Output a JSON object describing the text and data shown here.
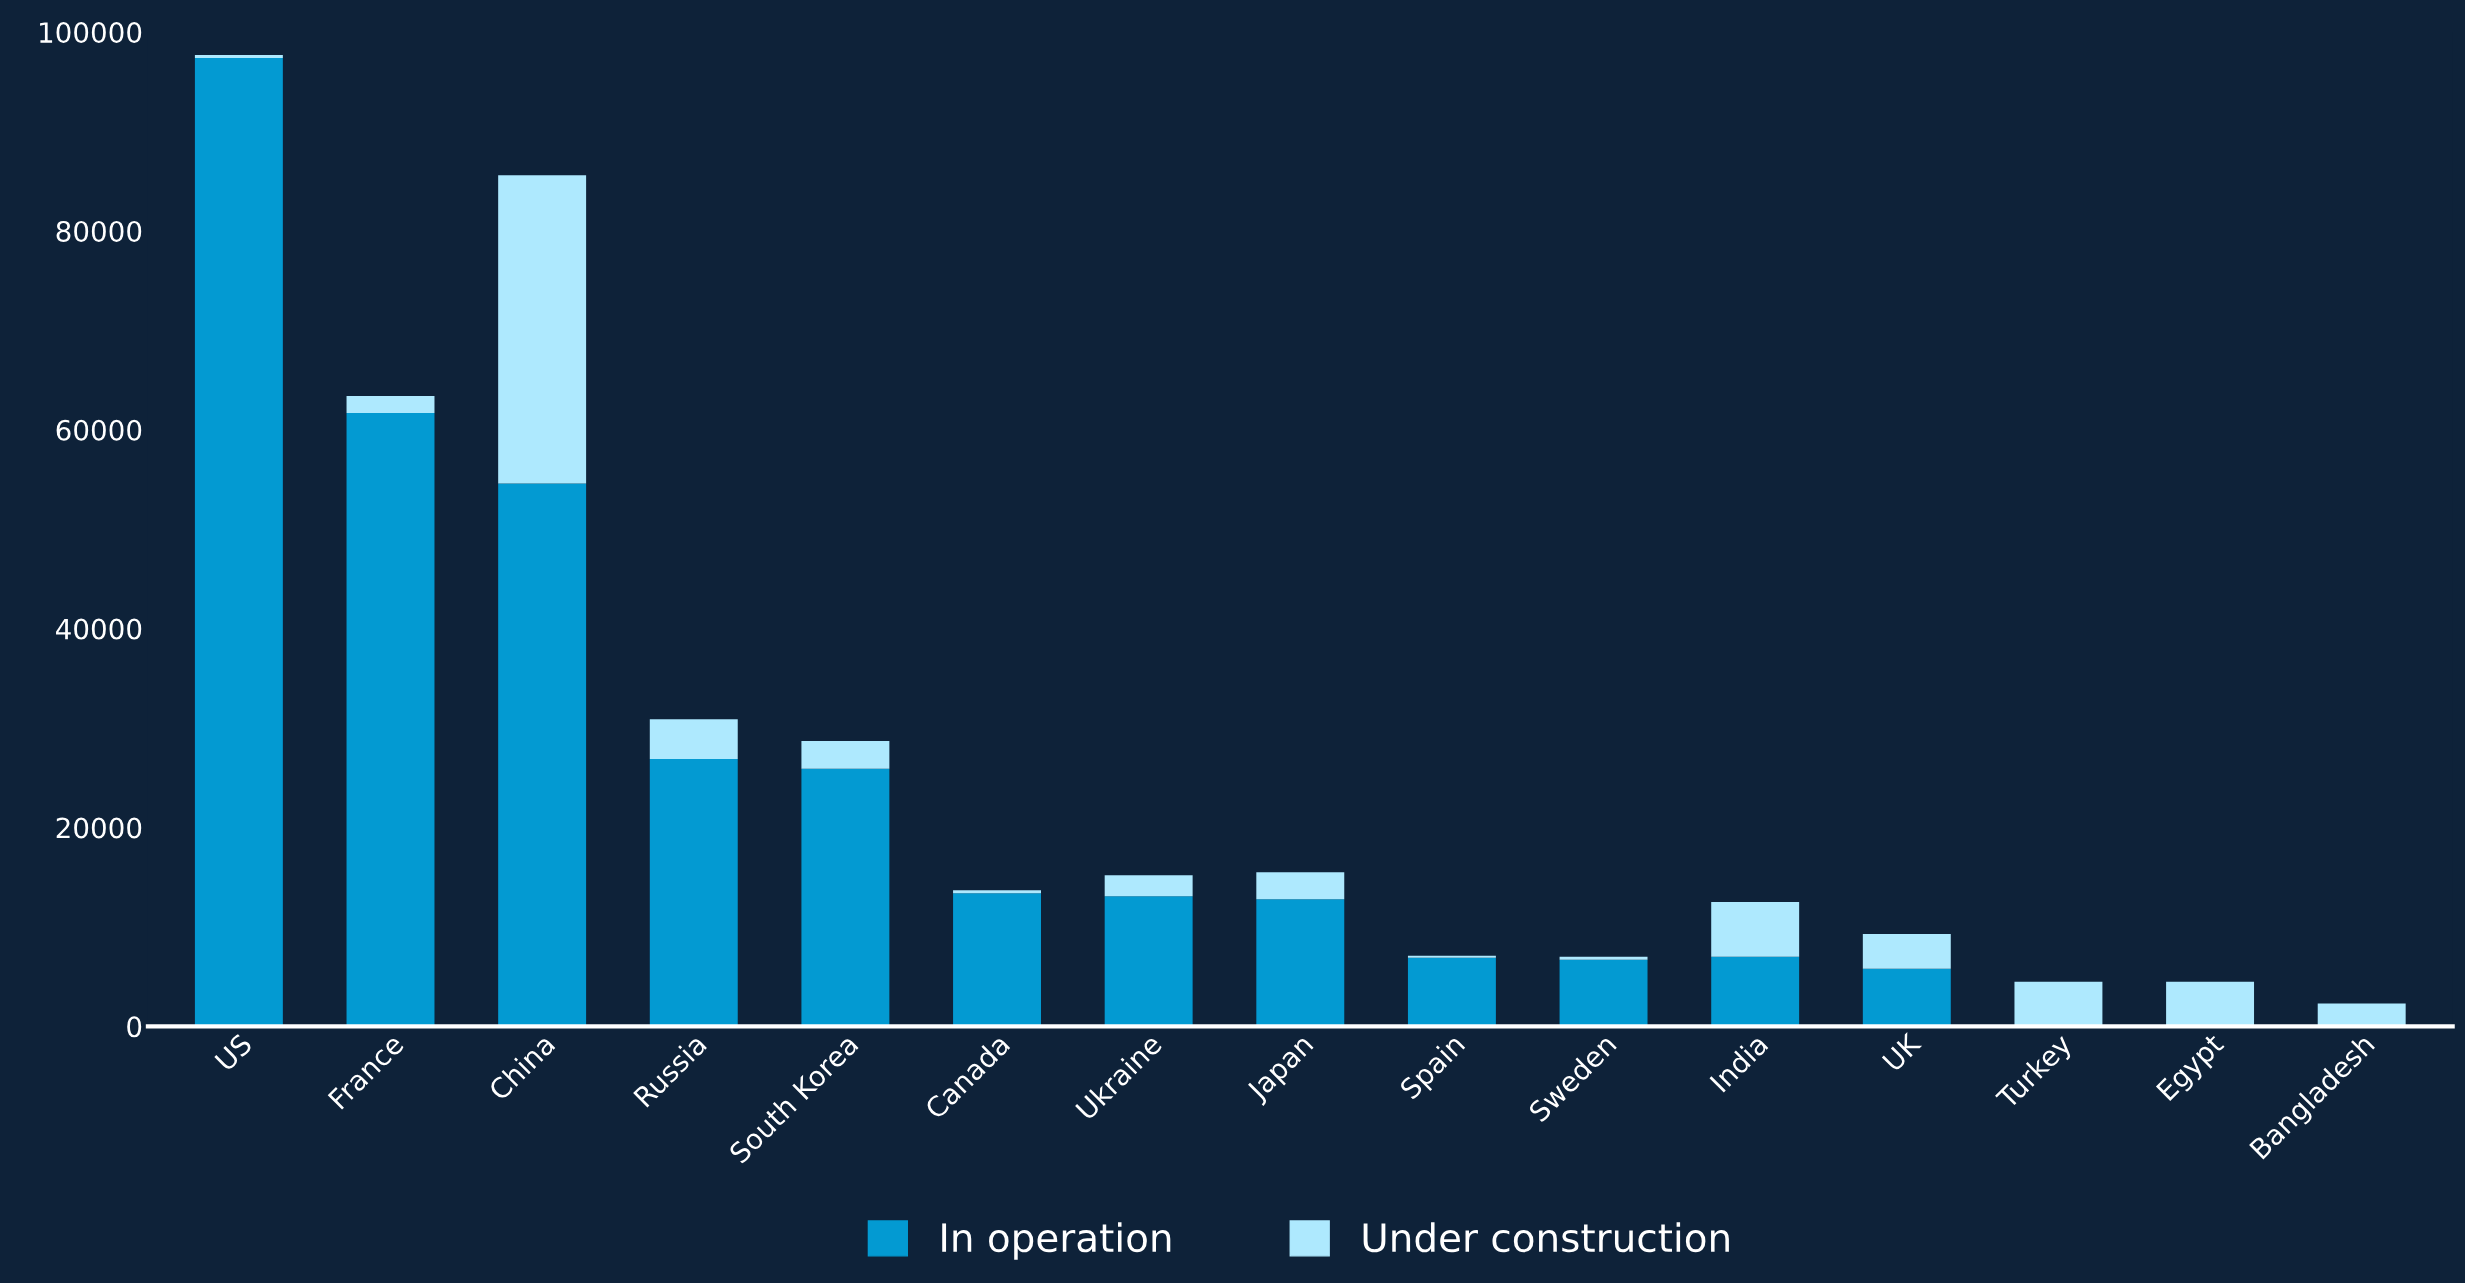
{
  "chart_data": {
    "type": "bar",
    "stacked": true,
    "categories": [
      "US",
      "France",
      "China",
      "Russia",
      "South Korea",
      "Canada",
      "Ukraine",
      "Japan",
      "Spain",
      "Sweden",
      "India",
      "UK",
      "Turkey",
      "Egypt",
      "Bangladesh"
    ],
    "series": [
      {
        "name": "In operation",
        "color": "#039ad2",
        "values": [
          97400,
          61700,
          54600,
          26900,
          25900,
          13400,
          13100,
          12800,
          6900,
          6700,
          7000,
          5800,
          0,
          0,
          0
        ]
      },
      {
        "name": "Under construction",
        "color": "#aee9fe",
        "values": [
          300,
          1700,
          31000,
          4000,
          2800,
          300,
          2100,
          2700,
          200,
          300,
          5500,
          3500,
          4500,
          4500,
          2300
        ]
      }
    ],
    "ylim": [
      0,
      100000
    ],
    "yticks": [
      0,
      20000,
      40000,
      60000,
      80000,
      100000
    ],
    "grid": false,
    "legend": "bottom"
  }
}
